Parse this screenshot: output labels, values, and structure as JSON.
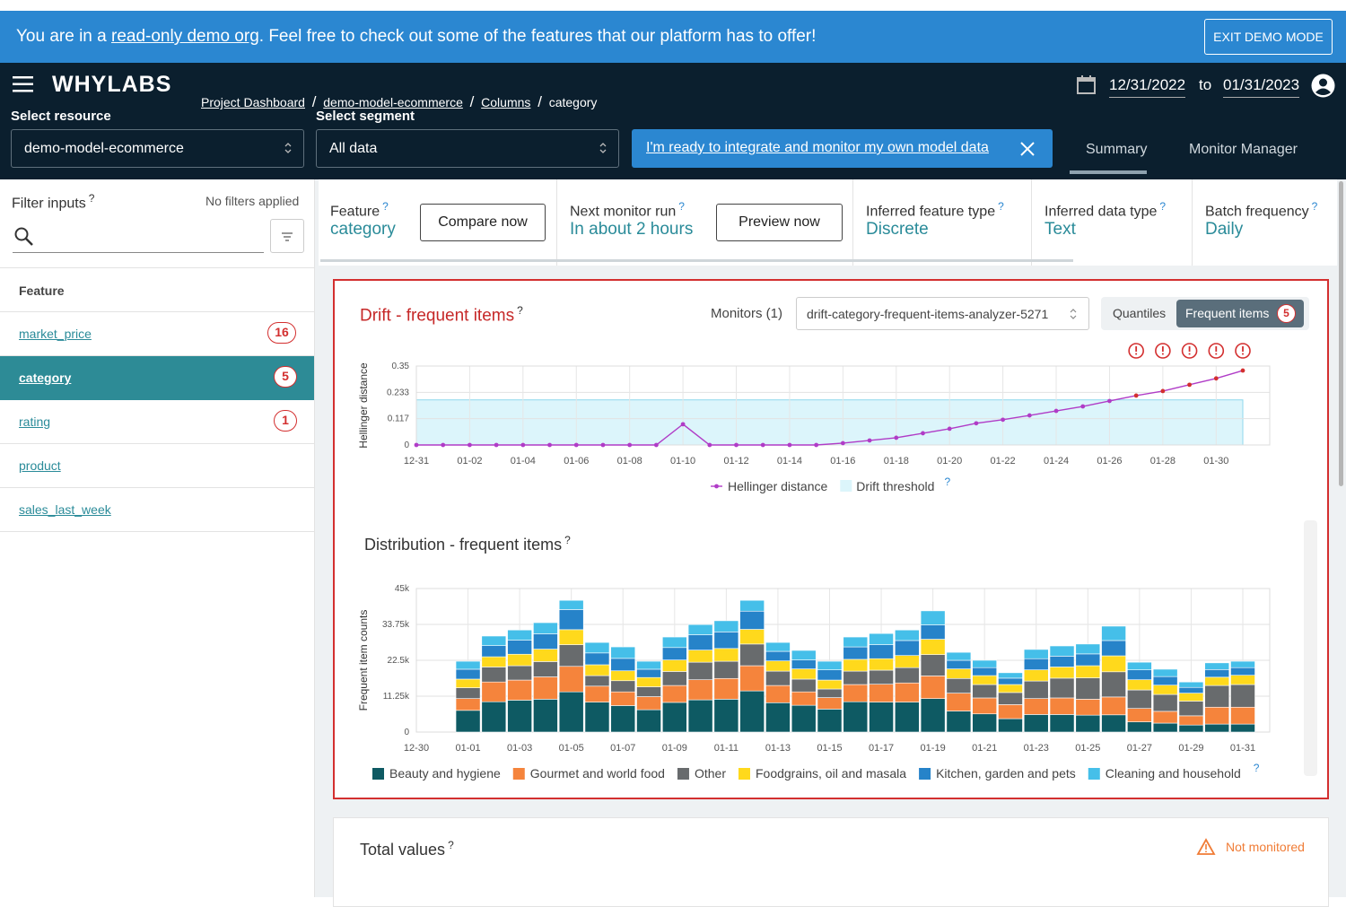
{
  "help": "?",
  "banner": {
    "text_before": "You are in a ",
    "link": "read-only demo org",
    "text_after": ". Feel free to check out some of the features that our platform has to offer!",
    "button": "EXIT DEMO MODE"
  },
  "nav": {
    "logo": "WHYLABS",
    "breadcrumbs": [
      "Project Dashboard",
      "demo-model-ecommerce",
      "Columns",
      "category"
    ],
    "separator": "/",
    "date_from": "12/31/2022",
    "date_to_label": "to",
    "date_to": "01/31/2023"
  },
  "selectors": {
    "resource_label": "Select resource",
    "resource": "demo-model-ecommerce",
    "segment_label": "Select segment",
    "segment": "All data",
    "integrate_button": "I'm ready to integrate and monitor my own model data"
  },
  "tabs": [
    "Summary",
    "Monitor Manager"
  ],
  "sidebar": {
    "filter_label": "Filter inputs",
    "filter_status": "No filters applied",
    "header": "Feature",
    "features": [
      {
        "name": "market_price",
        "count": 16
      },
      {
        "name": "category",
        "count": 5
      },
      {
        "name": "rating",
        "count": 1
      },
      {
        "name": "product"
      },
      {
        "name": "sales_last_week"
      }
    ]
  },
  "info": {
    "items": [
      {
        "label": "Feature",
        "value": "category"
      },
      {
        "label": "Next monitor run",
        "value": "In about 2 hours"
      },
      {
        "label": "Inferred feature type",
        "value": "Discrete"
      },
      {
        "label": "Inferred data type",
        "value": "Text"
      },
      {
        "label": "Batch frequency",
        "value": "Daily"
      }
    ],
    "buttons": [
      "Compare now",
      "Preview now"
    ]
  },
  "drift_panel": {
    "monitors": "Monitors (1)",
    "analyzer": "drift-category-frequent-items-analyzer-5271",
    "toggle": [
      "Quantiles",
      "Frequent items"
    ],
    "alert_count": 5
  },
  "total_values": {
    "title": "Total values",
    "status": "Not monitored"
  },
  "chart_data": [
    {
      "type": "line",
      "title": "Drift - frequent items",
      "y_label": "Hellinger distance",
      "categories": [
        "12-31",
        null,
        "01-02",
        null,
        "01-04",
        null,
        "01-06",
        null,
        "01-08",
        null,
        "01-10",
        null,
        "01-12",
        null,
        "01-14",
        null,
        "01-16",
        null,
        "01-18",
        null,
        "01-20",
        null,
        "01-22",
        null,
        "01-24",
        null,
        "01-26",
        null,
        "01-28",
        null,
        "01-30",
        null
      ],
      "series": [
        {
          "name": "Hellinger distance",
          "color": "#b03cc7",
          "values": [
            0,
            0,
            0,
            0,
            0,
            0,
            0,
            0,
            0,
            0,
            0.092,
            0,
            0,
            0,
            0,
            0,
            0.008,
            0.02,
            0.032,
            0.052,
            0.072,
            0.096,
            0.112,
            0.131,
            0.151,
            0.171,
            0.195,
            0.219,
            0.239,
            0.267,
            0.295,
            0.33
          ]
        }
      ],
      "threshold": {
        "name": "Drift threshold",
        "color": "#dcf5fb",
        "value": 0.2
      },
      "alert_color": "#d32f2f",
      "ylim": [
        0,
        0.35
      ],
      "yticks": [
        0,
        0.117,
        0.233,
        0.35
      ],
      "grid": true
    },
    {
      "type": "stacked_bar",
      "title": "Distribution - frequent items",
      "y_label": "Frequent item counts",
      "categories": [
        "12-30",
        null,
        "01-01",
        null,
        "01-03",
        null,
        "01-05",
        null,
        "01-07",
        null,
        "01-09",
        null,
        "01-11",
        null,
        "01-13",
        null,
        "01-15",
        null,
        "01-17",
        null,
        "01-19",
        null,
        "01-21",
        null,
        "01-23",
        null,
        "01-25",
        null,
        "01-27",
        null,
        "01-29",
        null,
        "01-31"
      ],
      "series": [
        {
          "name": "Beauty and hygiene",
          "color": "#0e5a63",
          "values": [
            null,
            null,
            6800,
            9500,
            10000,
            10300,
            12600,
            9400,
            8300,
            7000,
            9300,
            10100,
            10300,
            12900,
            9200,
            8400,
            7200,
            9500,
            9400,
            9400,
            10500,
            6600,
            5700,
            4200,
            5500,
            5500,
            5300,
            5400,
            3200,
            2800,
            2200,
            2500,
            2500
          ]
        },
        {
          "name": "Gourmet and world food",
          "color": "#f5843c",
          "values": [
            null,
            null,
            3700,
            6200,
            6300,
            7000,
            8000,
            5000,
            4300,
            4100,
            5300,
            6300,
            6500,
            7900,
            5400,
            4200,
            3600,
            5400,
            5600,
            6000,
            7100,
            5600,
            5000,
            4400,
            5000,
            5200,
            5000,
            5600,
            4200,
            3700,
            2900,
            5300,
            5300
          ]
        },
        {
          "name": "Other",
          "color": "#686b6d",
          "values": [
            null,
            null,
            3400,
            4700,
            4500,
            4800,
            6800,
            3300,
            3500,
            3100,
            4400,
            5500,
            5400,
            6800,
            4500,
            4000,
            2700,
            4200,
            4400,
            4800,
            6700,
            4600,
            4200,
            3800,
            5500,
            6200,
            6700,
            7900,
            5800,
            5300,
            4600,
            6800,
            7100
          ]
        },
        {
          "name": "Foodgrains, oil and masala",
          "color": "#ffd91c",
          "values": [
            null,
            null,
            2700,
            3200,
            3600,
            3900,
            4700,
            3400,
            3100,
            2900,
            3600,
            3800,
            4000,
            4600,
            3200,
            3200,
            2800,
            3700,
            3600,
            3800,
            4800,
            3000,
            2800,
            2500,
            3500,
            3500,
            3800,
            5000,
            3200,
            2900,
            2500,
            2600,
            2900
          ]
        },
        {
          "name": "Kitchen, garden and pets",
          "color": "#2683c9",
          "values": [
            null,
            null,
            3100,
            3500,
            4400,
            4800,
            6300,
            3700,
            3900,
            2600,
            3900,
            4800,
            5200,
            5700,
            3000,
            2800,
            3200,
            3900,
            4400,
            4700,
            4500,
            2700,
            2500,
            2000,
            3500,
            3400,
            3700,
            4800,
            3100,
            2700,
            1800,
            2400,
            2400
          ]
        },
        {
          "name": "Cleaning and household",
          "color": "#45bfe9",
          "values": [
            null,
            null,
            2500,
            3000,
            3200,
            3500,
            2900,
            3300,
            3600,
            2500,
            3300,
            3200,
            3500,
            3400,
            2800,
            3000,
            2700,
            3100,
            3500,
            3300,
            4400,
            2500,
            2300,
            1700,
            2900,
            3200,
            3100,
            4500,
            2400,
            2300,
            1700,
            2100,
            2000
          ]
        }
      ],
      "ylim": [
        0,
        45000
      ],
      "yticks": [
        0,
        {
          "value": 11250,
          "label": "11.25k"
        },
        {
          "value": 22500,
          "label": "22.5k"
        },
        {
          "value": 33750,
          "label": "33.75k"
        },
        {
          "value": 45000,
          "label": "45k"
        }
      ],
      "grid": true
    }
  ]
}
